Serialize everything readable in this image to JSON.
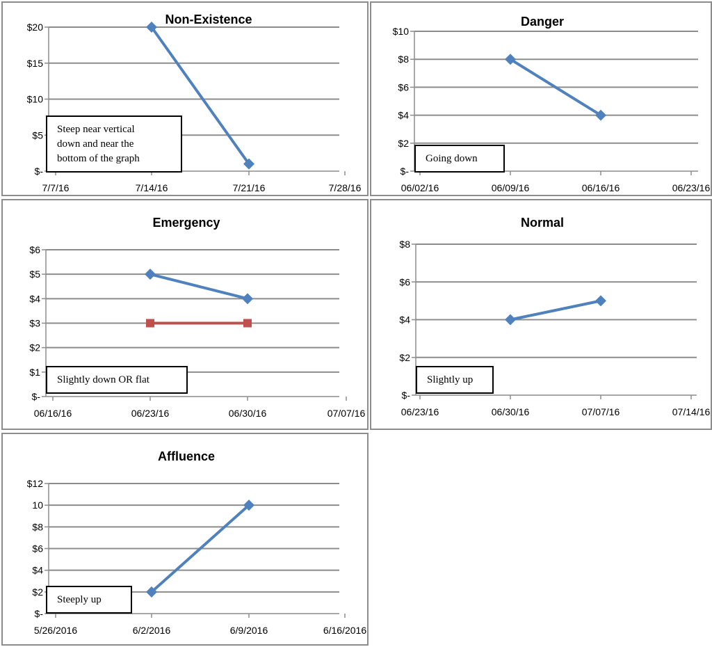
{
  "chart_data": [
    {
      "type": "line",
      "title": "Non-Existence",
      "x_ticks": [
        "7/7/16",
        "7/14/16",
        "7/21/16",
        "7/28/16"
      ],
      "y_ticks": [
        "$-",
        "$5",
        "$10",
        "$15",
        "$20"
      ],
      "ylim": [
        0,
        20
      ],
      "grid": true,
      "series": [
        {
          "x": [
            "7/14/16",
            "7/21/16"
          ],
          "values": [
            20,
            1
          ],
          "color": "#4f81bd",
          "marker": "diamond"
        }
      ],
      "annotation": "Steep near vertical\ndown and near the\nbottom of the graph"
    },
    {
      "type": "line",
      "title": "Danger",
      "x_ticks": [
        "06/02/16",
        "06/09/16",
        "06/16/16",
        "06/23/16"
      ],
      "y_ticks": [
        "$-",
        "$2",
        "$4",
        "$6",
        "$8",
        "$10"
      ],
      "ylim": [
        0,
        10
      ],
      "grid": true,
      "series": [
        {
          "x": [
            "06/09/16",
            "06/16/16"
          ],
          "values": [
            8,
            4
          ],
          "color": "#4f81bd",
          "marker": "diamond"
        }
      ],
      "annotation": "Going down"
    },
    {
      "type": "line",
      "title": "Emergency",
      "x_ticks": [
        "06/16/16",
        "06/23/16",
        "06/30/16",
        "07/07/16"
      ],
      "y_ticks": [
        "$-",
        "$1",
        "$2",
        "$3",
        "$4",
        "$5",
        "$6"
      ],
      "ylim": [
        0,
        6
      ],
      "grid": true,
      "series": [
        {
          "x": [
            "06/23/16",
            "06/30/16"
          ],
          "values": [
            5,
            4
          ],
          "color": "#4f81bd",
          "marker": "diamond"
        },
        {
          "x": [
            "06/23/16",
            "06/30/16"
          ],
          "values": [
            3,
            3
          ],
          "color": "#c0504d",
          "marker": "square"
        }
      ],
      "annotation": "Slightly down OR flat"
    },
    {
      "type": "line",
      "title": "Normal",
      "x_ticks": [
        "06/23/16",
        "06/30/16",
        "07/07/16",
        "07/14/16"
      ],
      "y_ticks": [
        "$-",
        "$2",
        "$4",
        "$6",
        "$8"
      ],
      "ylim": [
        0,
        8
      ],
      "grid": true,
      "series": [
        {
          "x": [
            "06/30/16",
            "07/07/16"
          ],
          "values": [
            4,
            5
          ],
          "color": "#4f81bd",
          "marker": "diamond"
        }
      ],
      "annotation": "Slightly up"
    },
    {
      "type": "line",
      "title": "Affluence",
      "x_ticks": [
        "5/26/2016",
        "6/2/2016",
        "6/9/2016",
        "6/16/2016"
      ],
      "y_ticks": [
        "$-",
        "$2",
        "$4",
        "$6",
        "$8",
        "10",
        "$12"
      ],
      "ylim": [
        0,
        12
      ],
      "grid": true,
      "series": [
        {
          "x": [
            "6/2/2016",
            "6/9/2016"
          ],
          "values": [
            2,
            10
          ],
          "color": "#4f81bd",
          "marker": "diamond"
        }
      ],
      "annotation": "Steeply up"
    }
  ]
}
